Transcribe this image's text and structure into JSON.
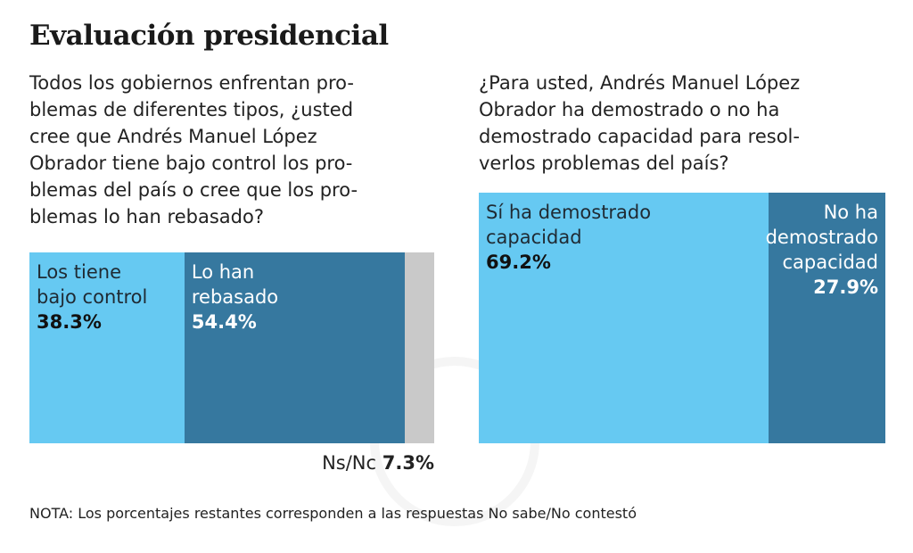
{
  "title": "Evaluación presidencial",
  "colors": {
    "light": "#66c9f2",
    "dark": "#36789f",
    "gray": "#c9c9c9"
  },
  "chart_data": [
    {
      "type": "bar",
      "orientation": "horizontal-stacked",
      "question": "Todos los gobiernos enfrentan pro-\nblemas de diferentes tipos, ¿usted\ncree que Andrés Manuel López\nObrador tiene bajo control los pro-\nblemas del país o cree que los pro-\nblemas lo han rebasado?",
      "segments": [
        {
          "label": "Los tiene\nbajo control",
          "value": 38.3,
          "display": "38.3%",
          "color": "#66c9f2"
        },
        {
          "label": "Lo han\nrebasado",
          "value": 54.4,
          "display": "54.4%",
          "color": "#36789f"
        },
        {
          "label": "Ns/Nc",
          "value": 7.3,
          "display": "7.3%",
          "color": "#c9c9c9"
        }
      ]
    },
    {
      "type": "bar",
      "orientation": "horizontal-stacked",
      "question": "¿Para usted, Andrés Manuel López\nObrador ha demostrado o no ha\ndemostrado capacidad para resol-\nverlos problemas del país?",
      "segments": [
        {
          "label": "Sí ha demostrado\ncapacidad",
          "value": 69.2,
          "display": "69.2%",
          "color": "#66c9f2"
        },
        {
          "label": "No ha\ndemostrado\ncapacidad",
          "value": 27.9,
          "display": "27.9%",
          "color": "#36789f"
        }
      ]
    }
  ],
  "note": "NOTA: Los porcentajes restantes corresponden a las respuestas No sabe/No contestó"
}
